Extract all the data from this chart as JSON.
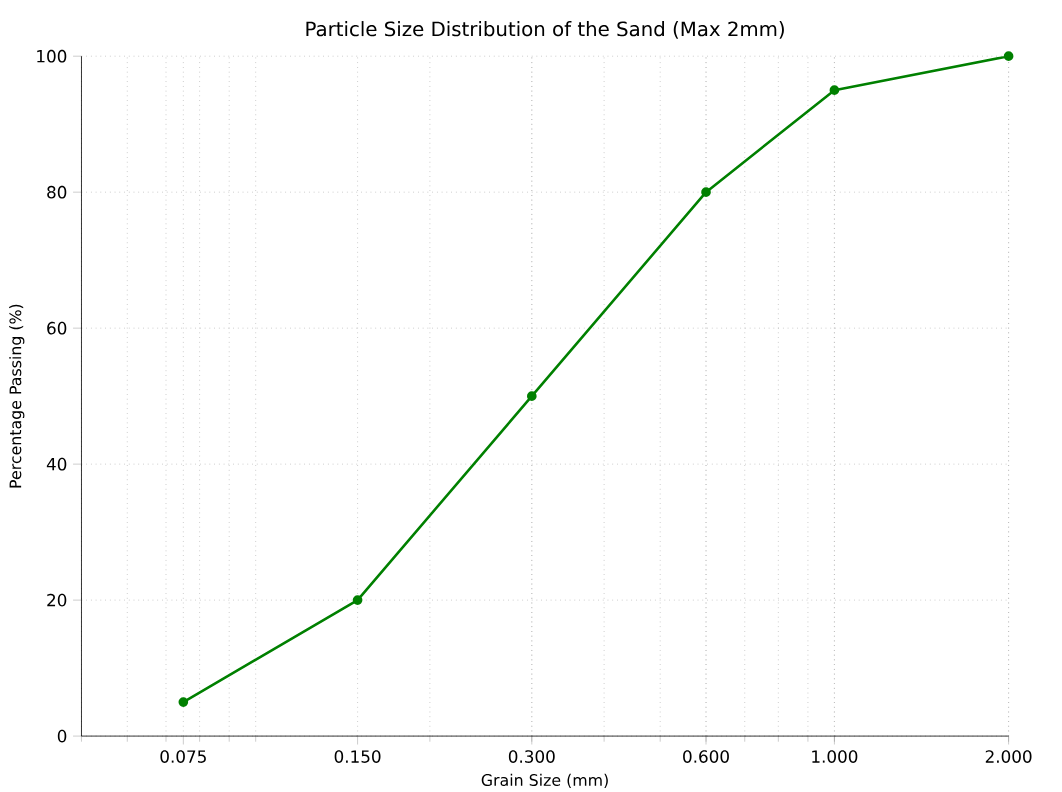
{
  "chart_data": {
    "type": "line",
    "title": "Particle Size Distribution of the Sand (Max 2mm)",
    "xlabel": "Grain Size (mm)",
    "ylabel": "Percentage Passing (%)",
    "x": [
      0.075,
      0.15,
      0.3,
      0.6,
      1.0,
      2.0
    ],
    "series": [
      {
        "color": "#008000",
        "values": [
          5,
          20,
          50,
          80,
          95,
          100
        ]
      }
    ],
    "log": "x",
    "xlim": [
      0.05,
      2.0
    ],
    "ylim": [
      0,
      100
    ],
    "xticks": [
      {
        "value": 0.075,
        "label": "0.075"
      },
      {
        "value": 0.15,
        "label": "0.150"
      },
      {
        "value": 0.3,
        "label": "0.300"
      },
      {
        "value": 0.6,
        "label": "0.600"
      },
      {
        "value": 1.0,
        "label": "1.000"
      },
      {
        "value": 2.0,
        "label": "2.000"
      }
    ],
    "yticks": [
      0,
      20,
      40,
      60,
      80,
      100
    ],
    "grid": true,
    "marker": "circle",
    "line_style": "solid"
  }
}
